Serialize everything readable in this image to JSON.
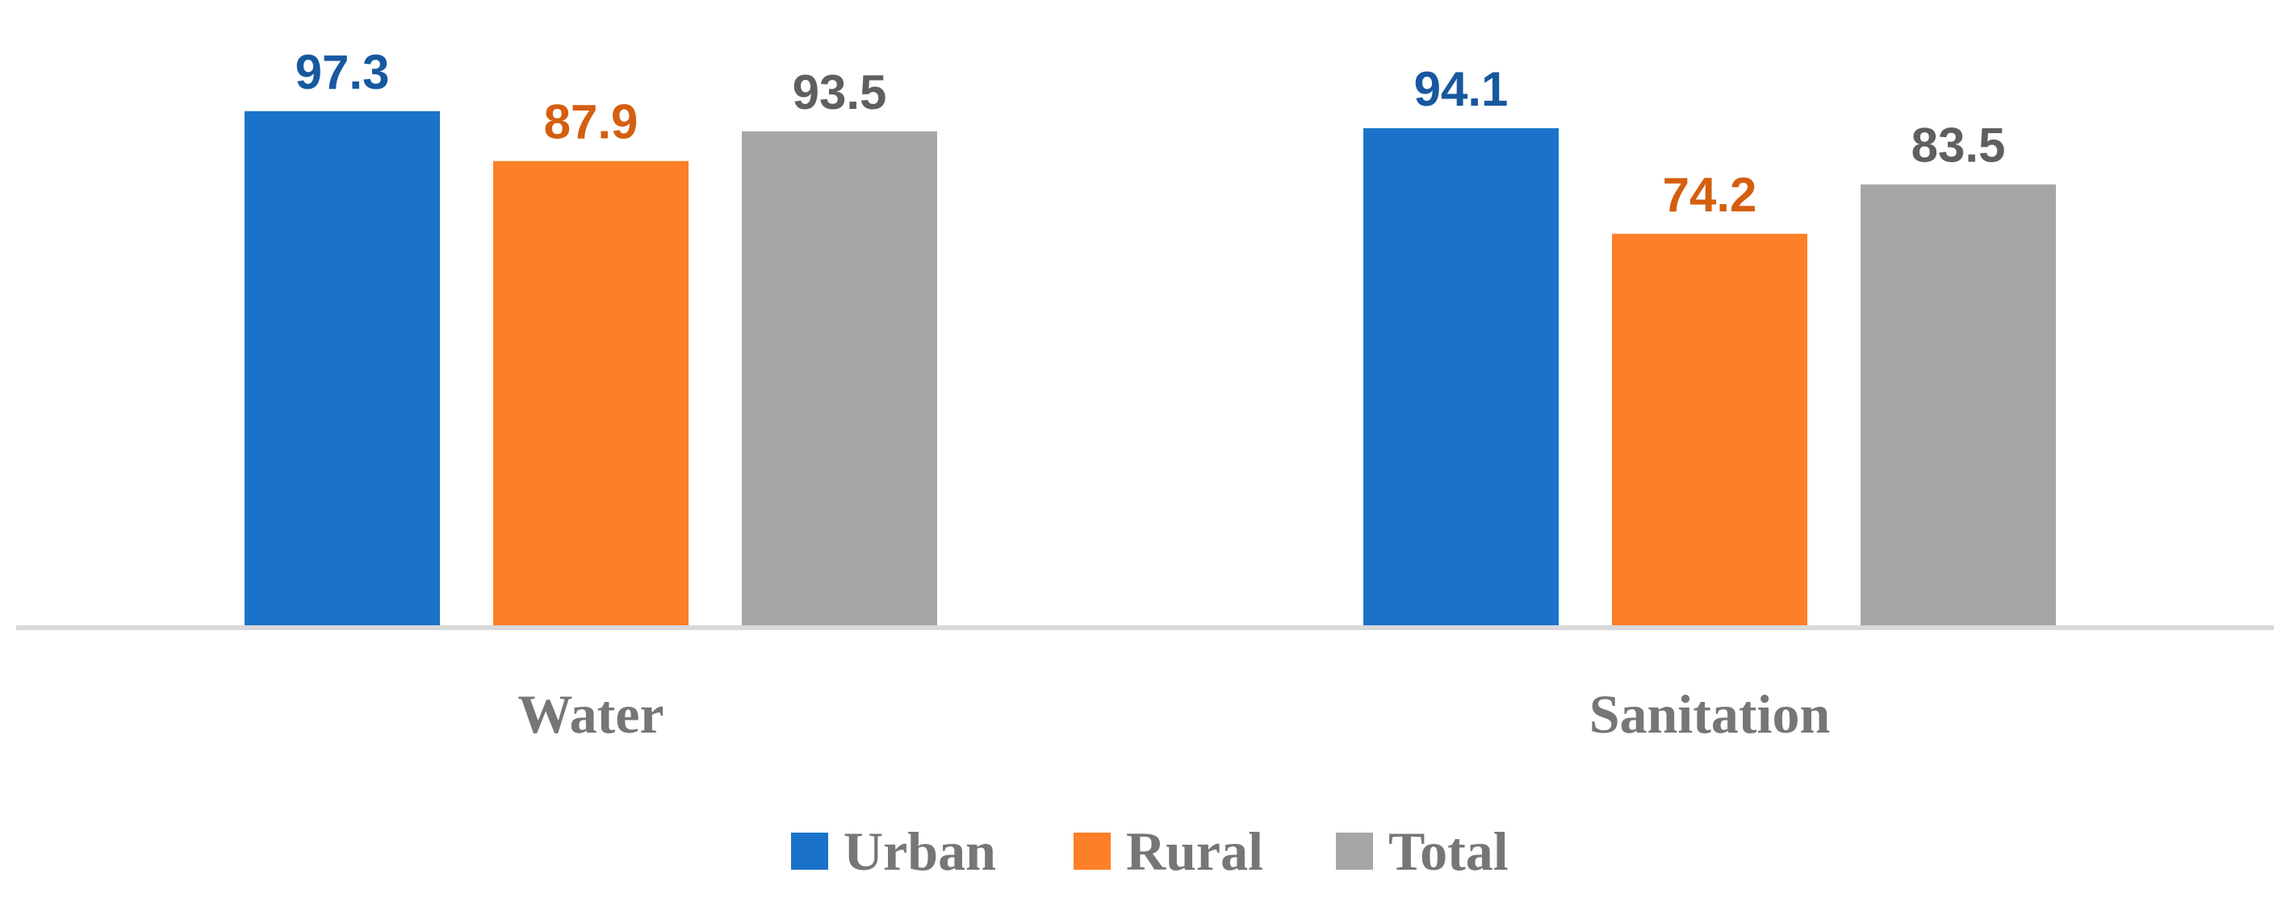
{
  "chart_data": {
    "type": "bar",
    "categories": [
      "Water",
      "Sanitation"
    ],
    "series": [
      {
        "name": "Urban",
        "values": [
          97.3,
          94.1
        ],
        "color": "#1a73c8",
        "label_color": "#17589f"
      },
      {
        "name": "Rural",
        "values": [
          87.9,
          74.2
        ],
        "color": "#fd7f27",
        "label_color": "#d45f10"
      },
      {
        "name": "Total",
        "values": [
          93.5,
          83.5
        ],
        "color": "#a6a6a6",
        "label_color": "#5f5f5f"
      }
    ],
    "ylim": [
      0,
      100
    ],
    "grid": false,
    "legend": "bottom",
    "title": "",
    "xlabel": "",
    "ylabel": ""
  }
}
